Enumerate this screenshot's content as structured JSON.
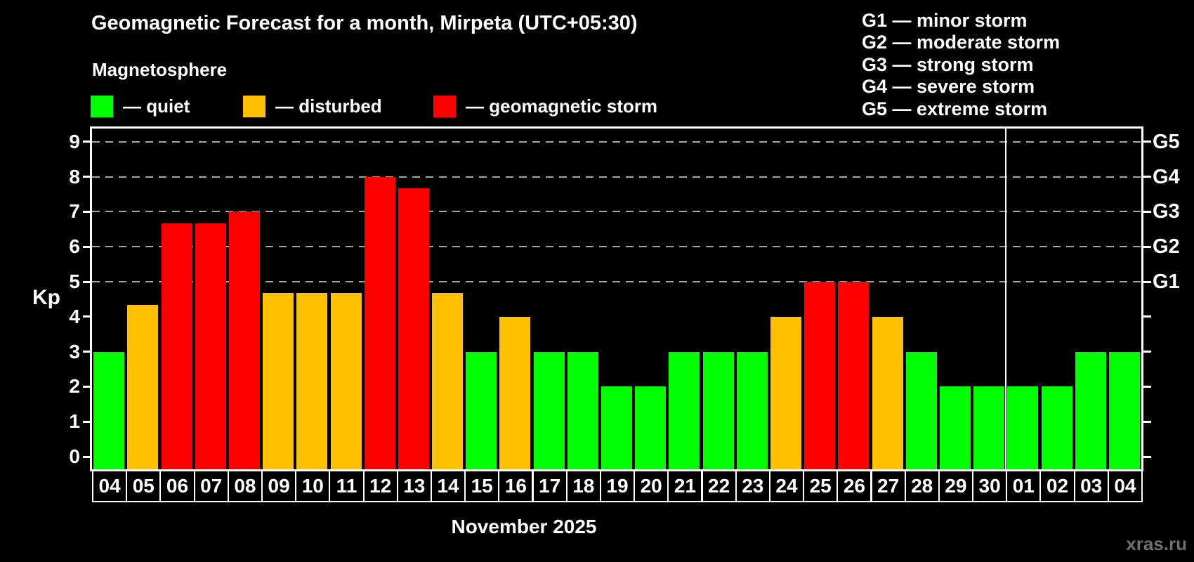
{
  "header": {
    "title": "Geomagnetic Forecast for a month, Mirpeta (UTC+05:30)",
    "subtitle": "Magnetosphere"
  },
  "legend": {
    "items": [
      {
        "key": "quiet",
        "label": "— quiet",
        "color": "#00ff00"
      },
      {
        "key": "disturbed",
        "label": "— disturbed",
        "color": "#ffc000"
      },
      {
        "key": "geomagnetic-storm",
        "label": "— geomagnetic storm",
        "color": "#ff0000"
      }
    ]
  },
  "storm_scale_legend": {
    "items": [
      "G1 — minor storm",
      "G2 — moderate storm",
      "G3 — strong storm",
      "G4 — severe storm",
      "G5 — extreme storm"
    ]
  },
  "footer": {
    "month_label": "November 2025",
    "watermark": "xras.ru"
  },
  "chart_data": {
    "type": "bar",
    "title": "Geomagnetic Forecast for a month, Mirpeta (UTC+05:30)",
    "subtitle": "Magnetosphere",
    "ylabel": "Kp",
    "xlabel": "November 2025",
    "ylim": [
      -0.36,
      9.37
    ],
    "yticks": [
      0,
      1,
      2,
      3,
      4,
      5,
      6,
      7,
      8,
      9
    ],
    "gridlines_at_kp": [
      5,
      6,
      7,
      8,
      9
    ],
    "grid_on": true,
    "grid_color": "#a6a6a6",
    "axis_color": "#ffffff",
    "background_color": "#000000",
    "legend_position": "top-left",
    "right_axis_labels": [
      {
        "kp": 5,
        "label": "G1"
      },
      {
        "kp": 6,
        "label": "G2"
      },
      {
        "kp": 7,
        "label": "G3"
      },
      {
        "kp": 8,
        "label": "G4"
      },
      {
        "kp": 9,
        "label": "G5"
      }
    ],
    "categories": [
      "04",
      "05",
      "06",
      "07",
      "08",
      "09",
      "10",
      "11",
      "12",
      "13",
      "14",
      "15",
      "16",
      "17",
      "18",
      "19",
      "20",
      "21",
      "22",
      "23",
      "24",
      "25",
      "26",
      "27",
      "28",
      "29",
      "30",
      "01",
      "02",
      "03",
      "04"
    ],
    "values": [
      3,
      4.33,
      6.67,
      6.67,
      7,
      4.67,
      4.67,
      4.67,
      8,
      7.67,
      4.67,
      3,
      4,
      3,
      3,
      2,
      2,
      3,
      3,
      3,
      4,
      5,
      5,
      4,
      3,
      2,
      2,
      2,
      2,
      3,
      3
    ],
    "statuses": [
      "quiet",
      "disturbed",
      "storm",
      "storm",
      "storm",
      "disturbed",
      "disturbed",
      "disturbed",
      "storm",
      "storm",
      "disturbed",
      "quiet",
      "disturbed",
      "quiet",
      "quiet",
      "quiet",
      "quiet",
      "quiet",
      "quiet",
      "quiet",
      "disturbed",
      "storm",
      "storm",
      "disturbed",
      "quiet",
      "quiet",
      "quiet",
      "quiet",
      "quiet",
      "quiet",
      "quiet"
    ],
    "status_colors": {
      "quiet": "#00ff00",
      "disturbed": "#ffc000",
      "storm": "#ff0000"
    },
    "month_separator_after_index": 26
  }
}
